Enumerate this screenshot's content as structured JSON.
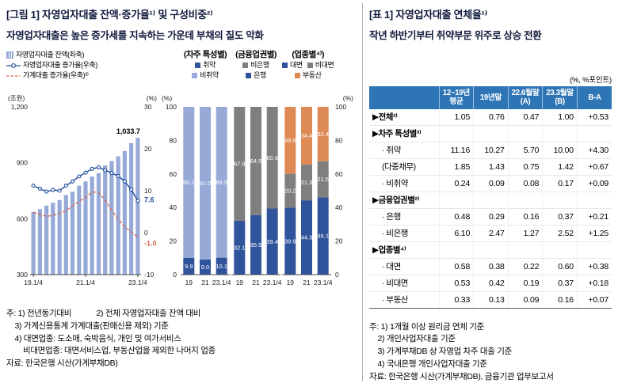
{
  "colors": {
    "bar_light": "#96a9d7",
    "dark_blue": "#30549b",
    "gray": "#7f7f7f",
    "orange": "#dd8a55",
    "line_blue": "#1f4e9c",
    "line_orange": "#d9694a",
    "table_header_bg": "#2e75b6"
  },
  "figure": {
    "title": "[그림 1] 자영업자대출 잔액·증가율¹⁾ 및 구성비중²⁾",
    "subtitle": "자영업자대출은 높은 증가세를 지속하는 가운데 부채의 질도 악화",
    "legend": [
      "자영업자대출 잔액(좌축)",
      "자영업자대출 증가율(우축)",
      "가계대출 증가율(우축)³⁾"
    ],
    "notes": [
      "주: 1) 전년동기대비            2) 전체 자영업자대출 잔액 대비",
      "    3) 가계신용통계 가계대출(판매신용 제외) 기준",
      "    4) 대면업종: 도소매, 숙박음식, 개인 및 여가서비스",
      "        비대면업종: 대면서비스업, 부동산업을 제외한 나머지 업종",
      "자료: 한국은행 시산(가계부채DB)"
    ]
  },
  "table": {
    "title": "[표 1] 자영업자대출 연체율¹⁾",
    "subtitle": "작년 하반기부터 취약부문 위주로 상승 전환",
    "unit_note": "(%, %포인트)",
    "columns": [
      "12~19년\n평균",
      "19년말",
      "22.6월말\n(A)",
      "23.3월말\n(B)",
      "B-A"
    ],
    "rows": [
      {
        "label": "▶전체²⁾",
        "indent": 0,
        "values": [
          "1.05",
          "0.76",
          "0.47",
          "1.00",
          "+0.53"
        ]
      },
      {
        "label": "▶차주 특성별³⁾",
        "indent": 0,
        "values": [
          "",
          "",
          "",
          "",
          ""
        ]
      },
      {
        "label": "· 취약",
        "indent": 1,
        "values": [
          "11.16",
          "10.27",
          "5.70",
          "10.00",
          "+4.30"
        ]
      },
      {
        "label": "(다중채무)",
        "indent": 1,
        "values": [
          "1.85",
          "1.43",
          "0.75",
          "1.42",
          "+0.67"
        ]
      },
      {
        "label": "· 비취약",
        "indent": 1,
        "values": [
          "0.24",
          "0.09",
          "0.08",
          "0.17",
          "+0.09"
        ]
      },
      {
        "label": "▶금융업권별²⁾",
        "indent": 0,
        "values": [
          "",
          "",
          "",
          "",
          ""
        ]
      },
      {
        "label": "· 은행",
        "indent": 1,
        "values": [
          "0.48",
          "0.29",
          "0.16",
          "0.37",
          "+0.21"
        ]
      },
      {
        "label": "· 비은행",
        "indent": 1,
        "values": [
          "6.10",
          "2.47",
          "1.27",
          "2.52",
          "+1.25"
        ]
      },
      {
        "label": "▶업종별⁴⁾",
        "indent": 0,
        "values": [
          "",
          "",
          "",
          "",
          ""
        ]
      },
      {
        "label": "· 대면",
        "indent": 1,
        "values": [
          "0.58",
          "0.38",
          "0.22",
          "0.60",
          "+0.38"
        ]
      },
      {
        "label": "· 비대면",
        "indent": 1,
        "values": [
          "0.53",
          "0.42",
          "0.19",
          "0.37",
          "+0.18"
        ]
      },
      {
        "label": "· 부동산",
        "indent": 1,
        "values": [
          "0.33",
          "0.13",
          "0.09",
          "0.16",
          "+0.07"
        ]
      }
    ],
    "notes": [
      "주: 1) 1개월 이상 원리금 연체 기준",
      "    2) 개인사업자대출 기준",
      "    3) 가계부채DB 상 자영업 차주 대출 기준",
      "    4) 국내은행 개인사업자대출 기준",
      "자료: 한국은행 시산(가계부채DB), 금융기관 업무보고서"
    ]
  },
  "chart_data": [
    {
      "type": "bar",
      "subtype": "combo-bar-line",
      "title": "자영업자대출 잔액·증가율",
      "x_ticks": [
        "19.1/4",
        "21.1/4",
        "23.1/4"
      ],
      "quarters": 17,
      "series": [
        {
          "name": "자영업자대출 잔액(좌축)",
          "type": "bar",
          "axis": "left",
          "unit": "조원",
          "values": [
            636,
            651,
            670,
            685,
            700,
            727,
            744,
            777,
            800,
            826,
            845,
            886,
            909,
            935,
            963,
            1005,
            1033.7
          ],
          "end_label": "1,033.7"
        },
        {
          "name": "자영업자대출 증가율(우축)",
          "type": "line",
          "axis": "right",
          "unit": "%",
          "values": [
            11.2,
            10.5,
            9.8,
            10.2,
            10.0,
            11.2,
            12.2,
            13.4,
            14.3,
            15.2,
            15.6,
            14.9,
            14.2,
            13.5,
            12.2,
            10.3,
            7.6
          ],
          "end_label": "7.6"
        },
        {
          "name": "가계대출 증가율(우축)",
          "type": "dashed-line",
          "axis": "right",
          "unit": "%",
          "values": [
            4.9,
            4.3,
            3.9,
            4.1,
            4.6,
            5.2,
            6.4,
            7.5,
            8.4,
            9.7,
            9.6,
            7.7,
            5.4,
            3.2,
            1.4,
            0.2,
            -1.0
          ],
          "end_label": "-1.0"
        }
      ],
      "left_axis": {
        "label": "(조원)",
        "min": 300,
        "max": 1200,
        "ticks": [
          300,
          600,
          900,
          1200
        ],
        "tick_labels": [
          "300",
          "600",
          "900",
          "1,200"
        ]
      },
      "right_axis": {
        "label": "(%)",
        "min": -10,
        "max": 30,
        "ticks": [
          -10,
          0,
          10,
          20,
          30
        ],
        "tick_labels": [
          "-10",
          "0",
          "10",
          "20",
          "30"
        ]
      }
    },
    {
      "type": "bar",
      "subtype": "stacked-100",
      "title": "(차주 특성별)",
      "categories": [
        "19",
        "21",
        "23.1/4"
      ],
      "axis": {
        "label": "(%)",
        "min": 0,
        "max": 100,
        "ticks": [
          0,
          20,
          40,
          60,
          80,
          100
        ],
        "side": "left"
      },
      "legend_rows": [
        [
          "취약"
        ],
        [
          "비취약"
        ]
      ],
      "series": [
        {
          "name": "취약",
          "color": "#30549b",
          "values": [
            9.9,
            9.0,
            10.1
          ]
        },
        {
          "name": "비취약",
          "color": "#96a9d7",
          "values": [
            90.1,
            91.0,
            89.9
          ]
        }
      ]
    },
    {
      "type": "bar",
      "subtype": "stacked-100",
      "title": "(금융업권별)",
      "categories": [
        "19",
        "21",
        "23.1/4"
      ],
      "axis": null,
      "legend_rows": [
        [
          "비은행"
        ],
        [
          "은행"
        ]
      ],
      "series": [
        {
          "name": "은행",
          "color": "#30549b",
          "values": [
            32.1,
            35.5,
            39.4
          ]
        },
        {
          "name": "비은행",
          "color": "#7f7f7f",
          "values": [
            67.9,
            64.5,
            60.6
          ]
        }
      ]
    },
    {
      "type": "bar",
      "subtype": "stacked-100",
      "title": "(업종별⁴⁾)",
      "categories": [
        "19",
        "21",
        "23.1/4"
      ],
      "axis": {
        "label": "(%)",
        "min": 0,
        "max": 100,
        "ticks": [
          0,
          20,
          40,
          60,
          80,
          100
        ],
        "side": "right"
      },
      "legend_rows": [
        [
          "대면",
          "비대면"
        ],
        [
          "부동산"
        ]
      ],
      "series": [
        {
          "name": "대면",
          "color": "#30549b",
          "values": [
            39.9,
            44.3,
            46.1
          ]
        },
        {
          "name": "비대면",
          "color": "#7f7f7f",
          "values": [
            20.2,
            21.3,
            21.5
          ]
        },
        {
          "name": "부동산",
          "color": "#dd8a55",
          "values": [
            39.9,
            34.4,
            32.4
          ]
        }
      ]
    }
  ]
}
